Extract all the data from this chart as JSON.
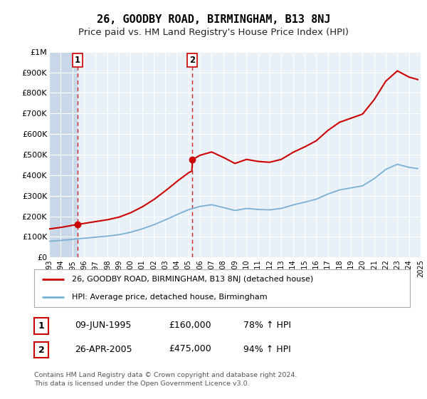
{
  "title": "26, GOODBY ROAD, BIRMINGHAM, B13 8NJ",
  "subtitle": "Price paid vs. HM Land Registry's House Price Index (HPI)",
  "title_fontsize": 11,
  "subtitle_fontsize": 9.5,
  "background_color": "#ffffff",
  "plot_bg_color": "#e8f0f8",
  "hatch_color": "#c8d8e8",
  "grid_color": "#ffffff",
  "hpi_line_color": "#7ab0d4",
  "price_line_color": "#cc0000",
  "marker_color": "#cc0000",
  "sale1_x": 1995.44,
  "sale1_y": 160000,
  "sale2_x": 2005.32,
  "sale2_y": 475000,
  "ylim": [
    0,
    1000000
  ],
  "xlim_start": 1993,
  "xlim_end": 2025,
  "legend_labels": [
    "26, GOODBY ROAD, BIRMINGHAM, B13 8NJ (detached house)",
    "HPI: Average price, detached house, Birmingham"
  ],
  "table_rows": [
    [
      "1",
      "09-JUN-1995",
      "£160,000",
      "78% ↑ HPI"
    ],
    [
      "2",
      "26-APR-2005",
      "£475,000",
      "94% ↑ HPI"
    ]
  ],
  "footnote": "Contains HM Land Registry data © Crown copyright and database right 2024.\nThis data is licensed under the Open Government Licence v3.0.",
  "yticks": [
    0,
    100000,
    200000,
    300000,
    400000,
    500000,
    600000,
    700000,
    800000,
    900000,
    1000000
  ],
  "ytick_labels": [
    "£0",
    "£100K",
    "£200K",
    "£300K",
    "£400K",
    "£500K",
    "£600K",
    "£700K",
    "£800K",
    "£900K",
    "£1M"
  ],
  "xticks": [
    1993,
    1994,
    1995,
    1996,
    1997,
    1998,
    1999,
    2000,
    2001,
    2002,
    2003,
    2004,
    2005,
    2006,
    2007,
    2008,
    2009,
    2010,
    2011,
    2012,
    2013,
    2014,
    2015,
    2016,
    2017,
    2018,
    2019,
    2020,
    2021,
    2022,
    2023,
    2024,
    2025
  ]
}
